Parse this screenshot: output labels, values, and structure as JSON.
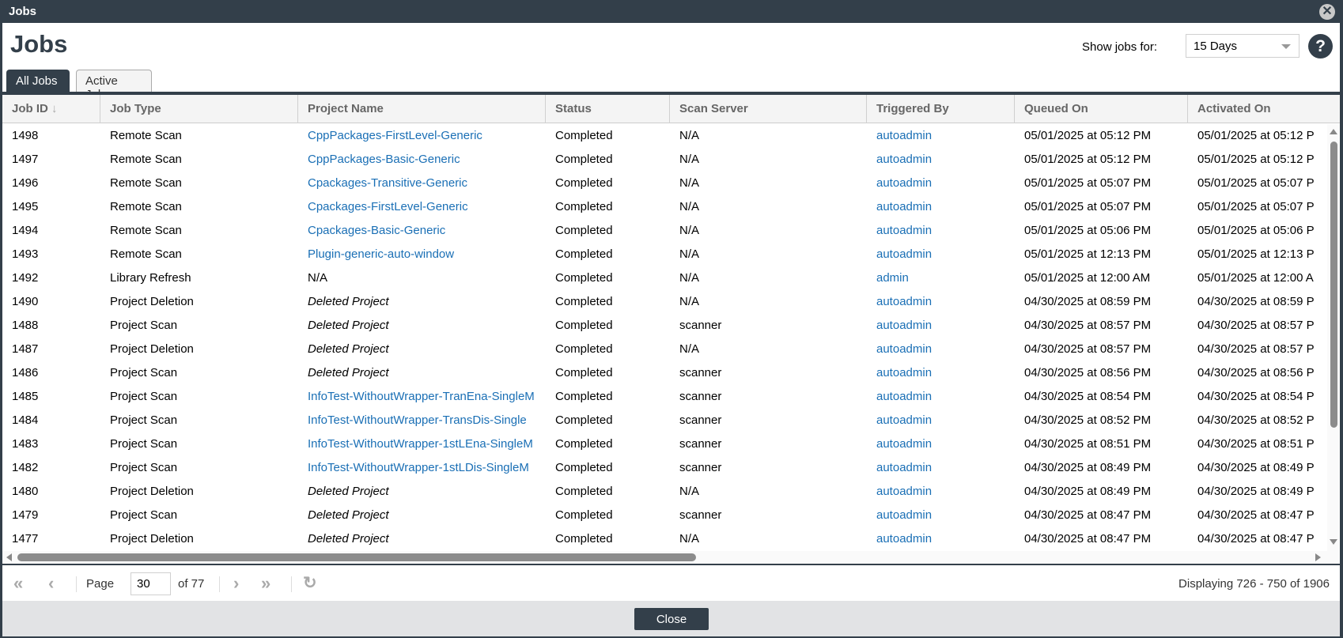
{
  "window": {
    "title": "Jobs",
    "close_icon": "close-circle-icon"
  },
  "page": {
    "title": "Jobs",
    "show_jobs_label": "Show jobs for:",
    "range_selected": "15 Days",
    "help_label": "?"
  },
  "tabs": [
    {
      "label": "All Jobs",
      "active": true
    },
    {
      "label": "Active Jobs",
      "active": false
    }
  ],
  "columns": [
    "Job ID",
    "Job Type",
    "Project Name",
    "Status",
    "Scan Server",
    "Triggered By",
    "Queued On",
    "Activated On"
  ],
  "sort": {
    "column": "Job ID",
    "direction": "descending",
    "icon": "arrow-down-icon"
  },
  "rows": [
    {
      "id": "1498",
      "type": "Remote Scan",
      "project": "CppPackages-FirstLevel-Generic",
      "project_style": "link",
      "status": "Completed",
      "server": "N/A",
      "by": "autoadmin",
      "queued": "05/01/2025 at 05:12 PM",
      "activated": "05/01/2025 at 05:12 P"
    },
    {
      "id": "1497",
      "type": "Remote Scan",
      "project": "CppPackages-Basic-Generic",
      "project_style": "link",
      "status": "Completed",
      "server": "N/A",
      "by": "autoadmin",
      "queued": "05/01/2025 at 05:12 PM",
      "activated": "05/01/2025 at 05:12 P"
    },
    {
      "id": "1496",
      "type": "Remote Scan",
      "project": "Cpackages-Transitive-Generic",
      "project_style": "link",
      "status": "Completed",
      "server": "N/A",
      "by": "autoadmin",
      "queued": "05/01/2025 at 05:07 PM",
      "activated": "05/01/2025 at 05:07 P"
    },
    {
      "id": "1495",
      "type": "Remote Scan",
      "project": "Cpackages-FirstLevel-Generic",
      "project_style": "link",
      "status": "Completed",
      "server": "N/A",
      "by": "autoadmin",
      "queued": "05/01/2025 at 05:07 PM",
      "activated": "05/01/2025 at 05:07 P"
    },
    {
      "id": "1494",
      "type": "Remote Scan",
      "project": "Cpackages-Basic-Generic",
      "project_style": "link",
      "status": "Completed",
      "server": "N/A",
      "by": "autoadmin",
      "queued": "05/01/2025 at 05:06 PM",
      "activated": "05/01/2025 at 05:06 P"
    },
    {
      "id": "1493",
      "type": "Remote Scan",
      "project": "Plugin-generic-auto-window",
      "project_style": "link",
      "status": "Completed",
      "server": "N/A",
      "by": "autoadmin",
      "queued": "05/01/2025 at 12:13 PM",
      "activated": "05/01/2025 at 12:13 P"
    },
    {
      "id": "1492",
      "type": "Library Refresh",
      "project": "N/A",
      "project_style": "plain",
      "status": "Completed",
      "server": "N/A",
      "by": "admin",
      "queued": "05/01/2025 at 12:00 AM",
      "activated": "05/01/2025 at 12:00 A"
    },
    {
      "id": "1490",
      "type": "Project Deletion",
      "project": "Deleted Project",
      "project_style": "italic",
      "status": "Completed",
      "server": "N/A",
      "by": "autoadmin",
      "queued": "04/30/2025 at 08:59 PM",
      "activated": "04/30/2025 at 08:59 P"
    },
    {
      "id": "1488",
      "type": "Project Scan",
      "project": "Deleted Project",
      "project_style": "italic",
      "status": "Completed",
      "server": "scanner",
      "by": "autoadmin",
      "queued": "04/30/2025 at 08:57 PM",
      "activated": "04/30/2025 at 08:57 P"
    },
    {
      "id": "1487",
      "type": "Project Deletion",
      "project": "Deleted Project",
      "project_style": "italic",
      "status": "Completed",
      "server": "N/A",
      "by": "autoadmin",
      "queued": "04/30/2025 at 08:57 PM",
      "activated": "04/30/2025 at 08:57 P"
    },
    {
      "id": "1486",
      "type": "Project Scan",
      "project": "Deleted Project",
      "project_style": "italic",
      "status": "Completed",
      "server": "scanner",
      "by": "autoadmin",
      "queued": "04/30/2025 at 08:56 PM",
      "activated": "04/30/2025 at 08:56 P"
    },
    {
      "id": "1485",
      "type": "Project Scan",
      "project": "InfoTest-WithoutWrapper-TranEna-SingleM",
      "project_style": "link",
      "status": "Completed",
      "server": "scanner",
      "by": "autoadmin",
      "queued": "04/30/2025 at 08:54 PM",
      "activated": "04/30/2025 at 08:54 P"
    },
    {
      "id": "1484",
      "type": "Project Scan",
      "project": "InfoTest-WithoutWrapper-TransDis-Single",
      "project_style": "link",
      "status": "Completed",
      "server": "scanner",
      "by": "autoadmin",
      "queued": "04/30/2025 at 08:52 PM",
      "activated": "04/30/2025 at 08:52 P"
    },
    {
      "id": "1483",
      "type": "Project Scan",
      "project": "InfoTest-WithoutWrapper-1stLEna-SingleM",
      "project_style": "link",
      "status": "Completed",
      "server": "scanner",
      "by": "autoadmin",
      "queued": "04/30/2025 at 08:51 PM",
      "activated": "04/30/2025 at 08:51 P"
    },
    {
      "id": "1482",
      "type": "Project Scan",
      "project": "InfoTest-WithoutWrapper-1stLDis-SingleM",
      "project_style": "link",
      "status": "Completed",
      "server": "scanner",
      "by": "autoadmin",
      "queued": "04/30/2025 at 08:49 PM",
      "activated": "04/30/2025 at 08:49 P"
    },
    {
      "id": "1480",
      "type": "Project Deletion",
      "project": "Deleted Project",
      "project_style": "italic",
      "status": "Completed",
      "server": "N/A",
      "by": "autoadmin",
      "queued": "04/30/2025 at 08:49 PM",
      "activated": "04/30/2025 at 08:49 P"
    },
    {
      "id": "1479",
      "type": "Project Scan",
      "project": "Deleted Project",
      "project_style": "italic",
      "status": "Completed",
      "server": "scanner",
      "by": "autoadmin",
      "queued": "04/30/2025 at 08:47 PM",
      "activated": "04/30/2025 at 08:47 P"
    },
    {
      "id": "1477",
      "type": "Project Deletion",
      "project": "Deleted Project",
      "project_style": "italic",
      "status": "Completed",
      "server": "N/A",
      "by": "autoadmin",
      "queued": "04/30/2025 at 08:47 PM",
      "activated": "04/30/2025 at 08:47 P"
    }
  ],
  "pager": {
    "page_label": "Page",
    "page_value": "30",
    "of_label": "of 77",
    "display_text": "Displaying 726 - 750 of 1906",
    "icons": [
      "first-page-icon",
      "prev-page-icon",
      "next-page-icon",
      "last-page-icon",
      "refresh-icon"
    ]
  },
  "footer": {
    "close_label": "Close"
  },
  "colors": {
    "chrome": "#333f4a",
    "link": "#1a6fb5",
    "header_text": "#666666"
  }
}
